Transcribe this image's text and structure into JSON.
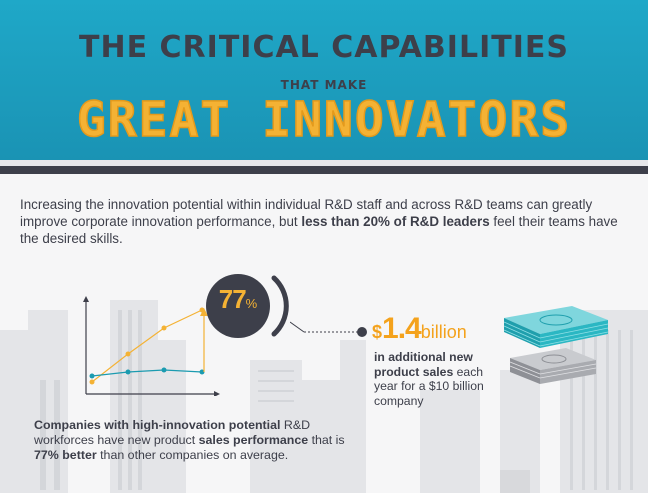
{
  "title": {
    "line1": "THE CRITICAL CAPABILITIES",
    "line2": "THAT MAKE",
    "line3": "GREAT INNOVATORS"
  },
  "intro": {
    "part1": "Increasing the innovation potential within individual R&D staff and across R&D teams can greatly improve corporate innovation performance, but ",
    "bold": "less than 20% of R&D leaders",
    "part2": " feel their teams have the desired skills."
  },
  "stat": {
    "percent_number": "77",
    "percent_sign": "%"
  },
  "billion": {
    "dollar": "$",
    "amount": "1.4",
    "unit": "billion",
    "desc_bold": "in additional new product sales",
    "desc_rest": " each year for a $10 billion company"
  },
  "companies": {
    "bold1": "Companies with high-innovation potential",
    "text1": " R&D workforces have new product ",
    "bold2": "sales performance",
    "text2": " that is ",
    "bold3": "77% better",
    "text3": " than other companies on average."
  },
  "colors": {
    "header_blue": "#1fa8c8",
    "accent_orange": "#f4b234",
    "dark": "#3d3f4a",
    "teal": "#1b9bb0",
    "money_teal": "#2bb7c3",
    "skyline_gray": "#e2e3e6"
  },
  "icons": {
    "chart": "line-chart-icon",
    "money_stack_large": "money-stack-icon",
    "money_stack_small": "money-stack-icon",
    "connector_dot": "dot-icon",
    "skyline": "city-skyline-illustration"
  }
}
